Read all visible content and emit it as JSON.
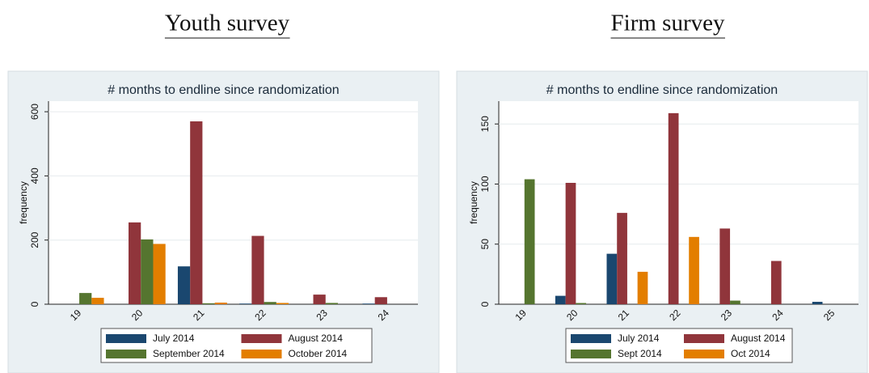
{
  "chart_data": [
    {
      "type": "bar",
      "heading": "Youth survey",
      "title": "# months to endline since randomization",
      "y_label": "frequency",
      "categories": [
        "19",
        "20",
        "21",
        "22",
        "23",
        "24"
      ],
      "series": [
        {
          "name": "July 2014",
          "color": "#1a476f",
          "values": [
            0,
            0,
            118,
            2,
            0,
            2
          ]
        },
        {
          "name": "August 2014",
          "color": "#90353b",
          "values": [
            0,
            255,
            570,
            213,
            30,
            22
          ]
        },
        {
          "name": "September 2014",
          "color": "#55752f",
          "values": [
            35,
            202,
            3,
            7,
            4,
            0
          ]
        },
        {
          "name": "October 2014",
          "color": "#e37e00",
          "values": [
            20,
            188,
            5,
            4,
            0,
            0
          ]
        }
      ],
      "ylim": [
        0,
        633
      ],
      "yticks": [
        0,
        200,
        400,
        600
      ],
      "grid": true,
      "legend": "bottom"
    },
    {
      "type": "bar",
      "heading": "Firm survey",
      "title": "# months to endline since randomization",
      "y_label": "frequency",
      "categories": [
        "19",
        "20",
        "21",
        "22",
        "23",
        "24",
        "25"
      ],
      "series": [
        {
          "name": "July 2014",
          "color": "#1a476f",
          "values": [
            0,
            7,
            42,
            0,
            0,
            0,
            2
          ]
        },
        {
          "name": "August 2014",
          "color": "#90353b",
          "values": [
            0,
            101,
            76,
            159,
            63,
            36,
            0
          ]
        },
        {
          "name": "Sept 2014",
          "color": "#55752f",
          "values": [
            104,
            1,
            0,
            0,
            3,
            0,
            0
          ]
        },
        {
          "name": "Oct 2014",
          "color": "#e37e00",
          "values": [
            0,
            0,
            27,
            56,
            0,
            0,
            0
          ]
        }
      ],
      "ylim": [
        0,
        169
      ],
      "yticks": [
        0,
        50,
        100,
        150
      ],
      "grid": true,
      "legend": "bottom"
    }
  ]
}
